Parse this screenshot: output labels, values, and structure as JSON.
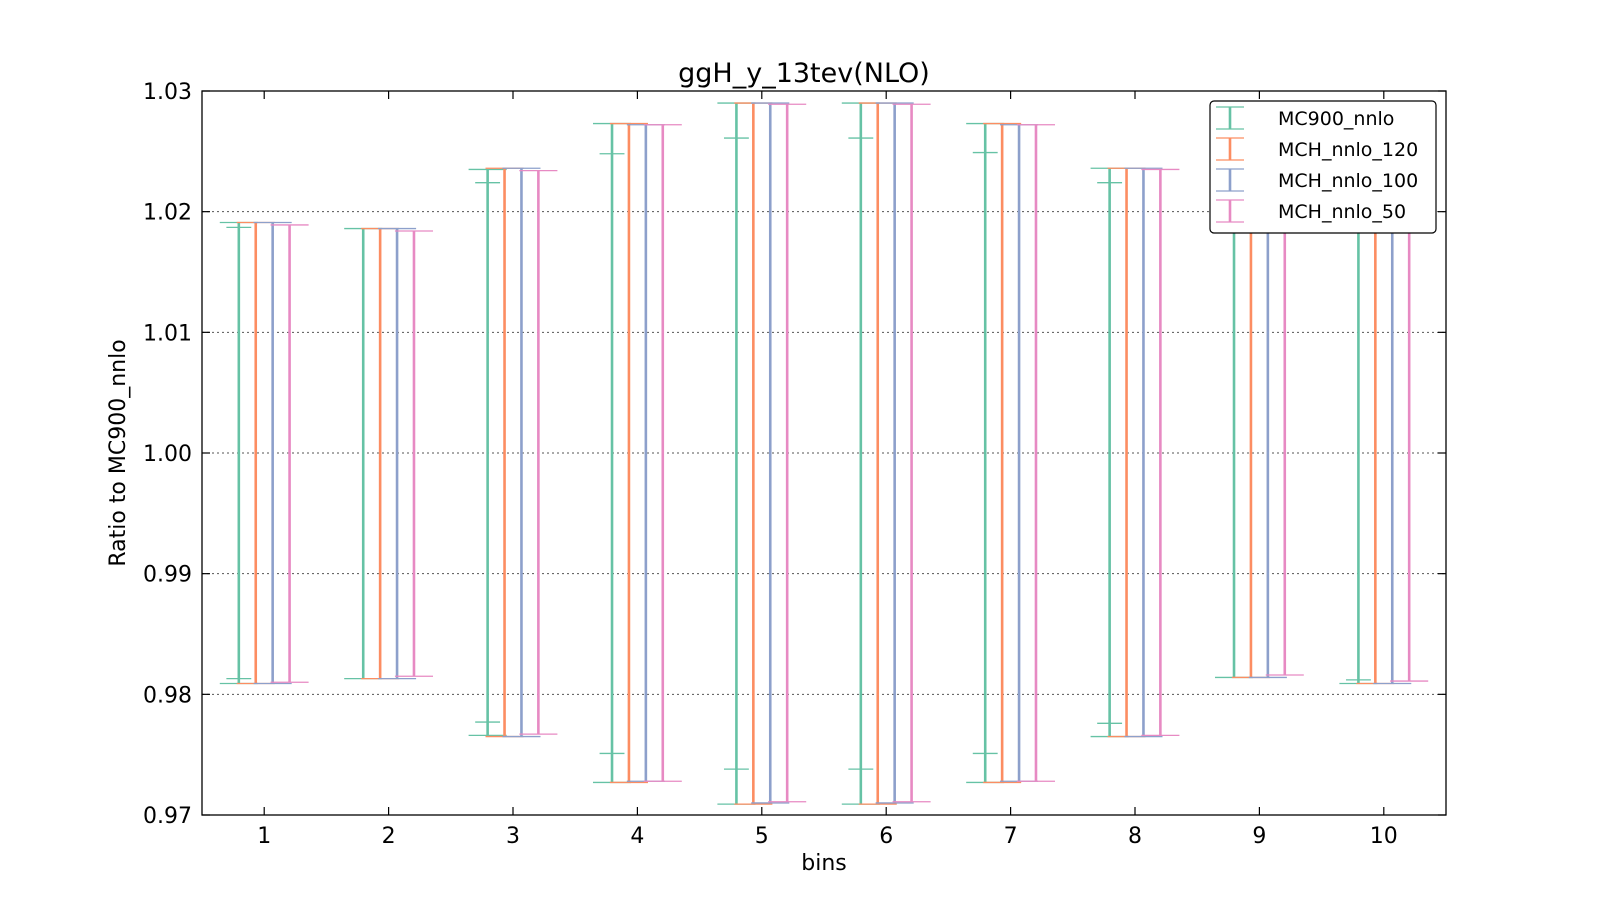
{
  "chart_data": {
    "type": "errorbar",
    "title": "ggH_y_13tev(NLO)",
    "xlabel": "bins",
    "ylabel": "Ratio to MC900_nnlo",
    "xlim": [
      0.5,
      10.5
    ],
    "ylim": [
      0.97,
      1.03
    ],
    "xticks": [
      "1",
      "2",
      "3",
      "4",
      "5",
      "6",
      "7",
      "8",
      "9",
      "10"
    ],
    "yticks": [
      "0.97",
      "0.98",
      "0.99",
      "1.00",
      "1.01",
      "1.02",
      "1.03"
    ],
    "grid": "horizontal dotted",
    "legend_position": "top-right",
    "categories": [
      1,
      2,
      3,
      4,
      5,
      6,
      7,
      8,
      9,
      10
    ],
    "series": [
      {
        "name": "MC900_nnlo",
        "color": "#66c2a5",
        "lower": [
          0.9809,
          0.9813,
          0.9766,
          0.9727,
          0.9709,
          0.9709,
          0.9727,
          0.9765,
          0.9814,
          0.9809
        ],
        "upper": [
          1.0191,
          1.0186,
          1.0235,
          1.0273,
          1.029,
          1.029,
          1.0273,
          1.0236,
          1.0185,
          1.019
        ],
        "inner_lower": [
          0.9813,
          null,
          0.9777,
          0.9751,
          0.9738,
          0.9738,
          0.9751,
          0.9776,
          null,
          0.9812
        ],
        "inner_upper": [
          1.0187,
          null,
          1.0224,
          1.0248,
          1.0261,
          1.0261,
          1.0249,
          1.0224,
          null,
          1.0188
        ]
      },
      {
        "name": "MCH_nnlo_120",
        "color": "#fc8d62",
        "lower": [
          0.9809,
          0.9813,
          0.9765,
          0.9727,
          0.9709,
          0.9709,
          0.9727,
          0.9765,
          0.9814,
          0.9809
        ],
        "upper": [
          1.0191,
          1.0186,
          1.0236,
          1.0273,
          1.029,
          1.029,
          1.0273,
          1.0236,
          1.0185,
          1.019
        ]
      },
      {
        "name": "MCH_nnlo_100",
        "color": "#8da0cb",
        "lower": [
          0.9809,
          0.9813,
          0.9765,
          0.9728,
          0.971,
          0.971,
          0.9728,
          0.9765,
          0.9814,
          0.9809
        ],
        "upper": [
          1.0191,
          1.0186,
          1.0236,
          1.0272,
          1.029,
          1.029,
          1.0272,
          1.0236,
          1.0185,
          1.019
        ]
      },
      {
        "name": "MCH_nnlo_50",
        "color": "#e78ac3",
        "lower": [
          0.981,
          0.9815,
          0.9767,
          0.9728,
          0.9711,
          0.9711,
          0.9728,
          0.9766,
          0.9816,
          0.9811
        ],
        "upper": [
          1.0189,
          1.0184,
          1.0234,
          1.0272,
          1.0289,
          1.0289,
          1.0272,
          1.0235,
          1.0184,
          1.0189
        ]
      }
    ]
  }
}
